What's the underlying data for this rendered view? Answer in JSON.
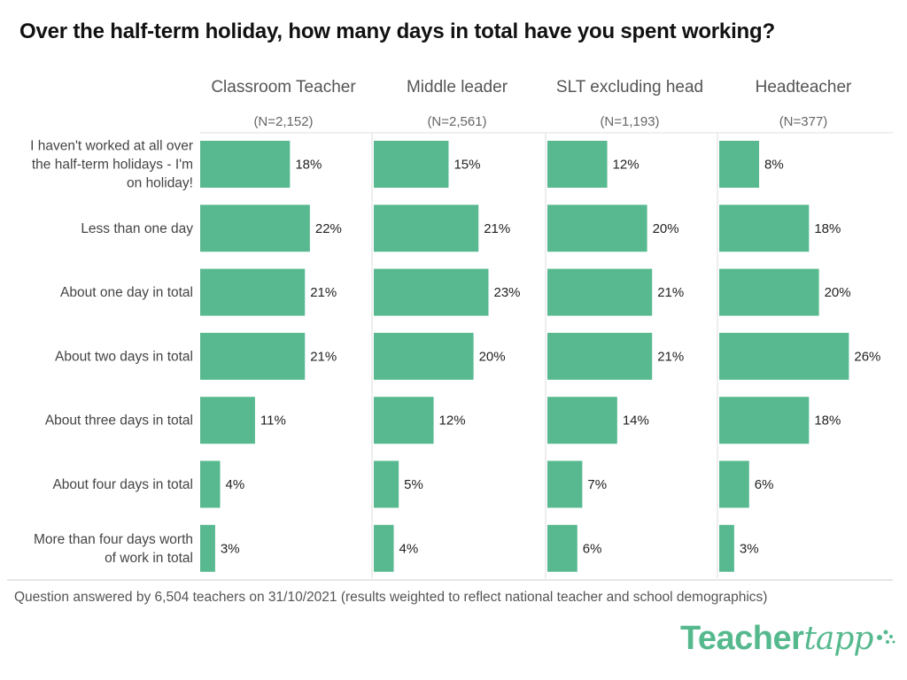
{
  "chart_data": {
    "type": "bar",
    "orientation": "horizontal",
    "title": "Over the half-term holiday, how many days in total have you spent working?",
    "categories": [
      "I haven't worked at all over the half-term holidays - I'm on holiday!",
      "Less than one day",
      "About one day in total",
      "About two days in total",
      "About three days in total",
      "About four days in total",
      "More than four days worth of work in total"
    ],
    "panels": [
      {
        "name": "Classroom Teacher",
        "n_label": "(N=2,152)",
        "values": [
          18,
          22,
          21,
          21,
          11,
          4,
          3
        ],
        "labels": [
          "18%",
          "22%",
          "21%",
          "21%",
          "11%",
          "4%",
          "3%"
        ]
      },
      {
        "name": "Middle leader",
        "n_label": "(N=2,561)",
        "values": [
          15,
          21,
          23,
          20,
          12,
          5,
          4
        ],
        "labels": [
          "15%",
          "21%",
          "23%",
          "20%",
          "12%",
          "5%",
          "4%"
        ]
      },
      {
        "name": "SLT excluding head",
        "n_label": "(N=1,193)",
        "values": [
          12,
          20,
          21,
          21,
          14,
          7,
          6
        ],
        "labels": [
          "12%",
          "20%",
          "21%",
          "21%",
          "14%",
          "7%",
          "6%"
        ]
      },
      {
        "name": "Headteacher",
        "n_label": "(N=377)",
        "values": [
          8,
          18,
          20,
          26,
          18,
          6,
          3
        ],
        "labels": [
          "8%",
          "18%",
          "20%",
          "26%",
          "18%",
          "6%",
          "3%"
        ]
      }
    ],
    "value_unit": "%",
    "xlim": [
      0,
      30
    ],
    "grid": false,
    "bar_color": "#58b991"
  },
  "footnote": "Question answered by 6,504 teachers on 31/10/2021 (results weighted to reflect national teacher and school demographics)",
  "logo": {
    "main": "Teacher",
    "script": "tapp"
  },
  "colors": {
    "bar": "#58b991",
    "brand": "#56b98e",
    "divider": "#dddddd"
  }
}
